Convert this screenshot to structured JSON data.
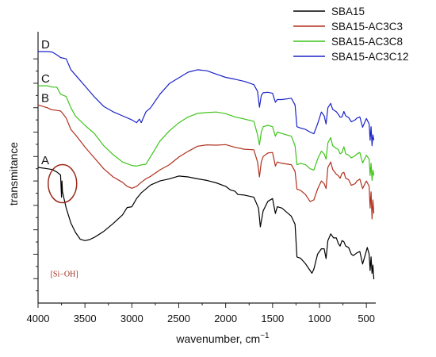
{
  "chart_data": {
    "type": "line",
    "xlabel": "wavenumber, cm",
    "xlabel_superscript": "−1",
    "ylabel": "transmitance",
    "xlim": [
      4000,
      400
    ],
    "x_reversed": true,
    "x_ticks": [
      {
        "v": 4000,
        "label": "4000"
      },
      {
        "v": 3500,
        "label": "3500"
      },
      {
        "v": 3000,
        "label": "3000"
      },
      {
        "v": 2500,
        "label": "2500"
      },
      {
        "v": 2000,
        "label": "2000"
      },
      {
        "v": 1500,
        "label": "1500"
      },
      {
        "v": 1000,
        "label": "1000"
      },
      {
        "v": 500,
        "label": "500"
      }
    ],
    "ylim": [
      0,
      100
    ],
    "y_tick_labels_shown": false,
    "y_tick_values": [
      9,
      18,
      27,
      36,
      45,
      54,
      63,
      72,
      81,
      90
    ],
    "grid": false,
    "legend_position": "top-right",
    "series": [
      {
        "name": "SBA15",
        "curve_label": "A",
        "color": "#000000",
        "points": [
          [
            4000,
            50
          ],
          [
            3900,
            49.5
          ],
          [
            3850,
            49.2
          ],
          [
            3800,
            48.3
          ],
          [
            3760,
            47.2
          ],
          [
            3750,
            39
          ],
          [
            3745,
            45
          ],
          [
            3740,
            41
          ],
          [
            3700,
            35
          ],
          [
            3650,
            29.5
          ],
          [
            3600,
            26
          ],
          [
            3550,
            23.5
          ],
          [
            3500,
            23
          ],
          [
            3450,
            23.4
          ],
          [
            3400,
            24.2
          ],
          [
            3300,
            26.4
          ],
          [
            3200,
            29.3
          ],
          [
            3100,
            32.5
          ],
          [
            3050,
            35.2
          ],
          [
            3000,
            35.5
          ],
          [
            2950,
            38.5
          ],
          [
            2900,
            40.6
          ],
          [
            2800,
            43.5
          ],
          [
            2700,
            45
          ],
          [
            2600,
            45.8
          ],
          [
            2500,
            46.8
          ],
          [
            2400,
            46.5
          ],
          [
            2300,
            45.8
          ],
          [
            2200,
            45.2
          ],
          [
            2100,
            44.3
          ],
          [
            2000,
            43
          ],
          [
            1950,
            41.7
          ],
          [
            1900,
            41.2
          ],
          [
            1870,
            40
          ],
          [
            1800,
            39.8
          ],
          [
            1700,
            39
          ],
          [
            1650,
            35
          ],
          [
            1630,
            28.1
          ],
          [
            1600,
            34
          ],
          [
            1550,
            37.5
          ],
          [
            1500,
            38.5
          ],
          [
            1470,
            33
          ],
          [
            1450,
            35.5
          ],
          [
            1400,
            35
          ],
          [
            1350,
            33.5
          ],
          [
            1300,
            32
          ],
          [
            1260,
            29
          ],
          [
            1240,
            17
          ],
          [
            1200,
            16.5
          ],
          [
            1150,
            14.5
          ],
          [
            1100,
            12
          ],
          [
            1080,
            11
          ],
          [
            1060,
            12.5
          ],
          [
            1020,
            18
          ],
          [
            980,
            20
          ],
          [
            950,
            20
          ],
          [
            930,
            16.4
          ],
          [
            910,
            23
          ],
          [
            880,
            25.5
          ],
          [
            850,
            24
          ],
          [
            820,
            24
          ],
          [
            800,
            22
          ],
          [
            780,
            21
          ],
          [
            760,
            23
          ],
          [
            740,
            22.6
          ],
          [
            720,
            21
          ],
          [
            690,
            20.5
          ],
          [
            660,
            18
          ],
          [
            640,
            17.5
          ],
          [
            600,
            18.5
          ],
          [
            570,
            19
          ],
          [
            540,
            14.4
          ],
          [
            510,
            18
          ],
          [
            490,
            20.5
          ],
          [
            470,
            18
          ],
          [
            460,
            12
          ],
          [
            450,
            17
          ],
          [
            440,
            10.9
          ],
          [
            430,
            14
          ],
          [
            420,
            8.8
          ]
        ]
      },
      {
        "name": "SBA15-AC3C3",
        "curve_label": "B",
        "color": "#b0301e",
        "points": [
          [
            4000,
            73
          ],
          [
            3950,
            72.5
          ],
          [
            3900,
            72
          ],
          [
            3860,
            71.3
          ],
          [
            3800,
            71
          ],
          [
            3760,
            70.8
          ],
          [
            3740,
            70
          ],
          [
            3700,
            68.2
          ],
          [
            3650,
            64
          ],
          [
            3600,
            62
          ],
          [
            3500,
            57.5
          ],
          [
            3400,
            53.5
          ],
          [
            3300,
            49.5
          ],
          [
            3200,
            46.5
          ],
          [
            3100,
            44.5
          ],
          [
            3050,
            43
          ],
          [
            3000,
            42.3
          ],
          [
            2950,
            43
          ],
          [
            2900,
            44.5
          ],
          [
            2850,
            45.8
          ],
          [
            2800,
            46.7
          ],
          [
            2700,
            49.1
          ],
          [
            2600,
            51
          ],
          [
            2500,
            53.8
          ],
          [
            2400,
            55.9
          ],
          [
            2300,
            57.8
          ],
          [
            2200,
            58.3
          ],
          [
            2100,
            58.2
          ],
          [
            2000,
            58.4
          ],
          [
            1900,
            57.4
          ],
          [
            1800,
            56.7
          ],
          [
            1700,
            56.5
          ],
          [
            1660,
            52
          ],
          [
            1640,
            46.5
          ],
          [
            1620,
            52
          ],
          [
            1600,
            54
          ],
          [
            1550,
            55.3
          ],
          [
            1500,
            55.5
          ],
          [
            1470,
            50.5
          ],
          [
            1450,
            52
          ],
          [
            1400,
            51.5
          ],
          [
            1300,
            51
          ],
          [
            1260,
            48.5
          ],
          [
            1240,
            42
          ],
          [
            1200,
            41.5
          ],
          [
            1150,
            40
          ],
          [
            1100,
            37.4
          ],
          [
            1060,
            38
          ],
          [
            1020,
            42
          ],
          [
            980,
            45
          ],
          [
            950,
            44
          ],
          [
            930,
            42.2
          ],
          [
            910,
            50
          ],
          [
            880,
            52
          ],
          [
            860,
            49.3
          ],
          [
            820,
            47.5
          ],
          [
            800,
            47
          ],
          [
            780,
            46
          ],
          [
            760,
            47.8
          ],
          [
            740,
            48.2
          ],
          [
            720,
            46
          ],
          [
            690,
            45.5
          ],
          [
            660,
            43.4
          ],
          [
            620,
            44
          ],
          [
            600,
            45
          ],
          [
            570,
            45.7
          ],
          [
            540,
            42.2
          ],
          [
            500,
            45
          ],
          [
            470,
            43
          ],
          [
            460,
            35
          ],
          [
            450,
            41
          ],
          [
            440,
            31
          ],
          [
            430,
            38
          ],
          [
            420,
            33
          ]
        ]
      },
      {
        "name": "SBA15-AC3C8",
        "curve_label": "C",
        "color": "#3ec41b",
        "points": [
          [
            4000,
            80.1
          ],
          [
            3900,
            80.1
          ],
          [
            3850,
            79.6
          ],
          [
            3800,
            79.6
          ],
          [
            3760,
            77
          ],
          [
            3700,
            76.1
          ],
          [
            3650,
            72
          ],
          [
            3600,
            68.9
          ],
          [
            3500,
            65.5
          ],
          [
            3400,
            62.5
          ],
          [
            3300,
            58
          ],
          [
            3200,
            54.7
          ],
          [
            3100,
            52
          ],
          [
            3000,
            50.7
          ],
          [
            2950,
            50.5
          ],
          [
            2900,
            50.9
          ],
          [
            2850,
            51.2
          ],
          [
            2800,
            54
          ],
          [
            2700,
            59.7
          ],
          [
            2600,
            63.5
          ],
          [
            2500,
            66.4
          ],
          [
            2400,
            68.6
          ],
          [
            2300,
            69.9
          ],
          [
            2200,
            70.2
          ],
          [
            2100,
            70.4
          ],
          [
            2000,
            69.8
          ],
          [
            1900,
            68.6
          ],
          [
            1800,
            67.8
          ],
          [
            1700,
            67
          ],
          [
            1660,
            62
          ],
          [
            1640,
            58.3
          ],
          [
            1620,
            63
          ],
          [
            1600,
            65
          ],
          [
            1550,
            65.5
          ],
          [
            1500,
            65
          ],
          [
            1470,
            61.5
          ],
          [
            1450,
            63
          ],
          [
            1400,
            62.5
          ],
          [
            1300,
            61.5
          ],
          [
            1260,
            58
          ],
          [
            1240,
            51
          ],
          [
            1200,
            51.5
          ],
          [
            1150,
            51
          ],
          [
            1100,
            49.5
          ],
          [
            1060,
            49
          ],
          [
            1020,
            53
          ],
          [
            980,
            56
          ],
          [
            950,
            55
          ],
          [
            930,
            53
          ],
          [
            910,
            59
          ],
          [
            880,
            61
          ],
          [
            860,
            58
          ],
          [
            820,
            57
          ],
          [
            800,
            56.6
          ],
          [
            780,
            55
          ],
          [
            760,
            55.5
          ],
          [
            740,
            57.6
          ],
          [
            720,
            55
          ],
          [
            690,
            54.5
          ],
          [
            660,
            53.5
          ],
          [
            620,
            54.3
          ],
          [
            600,
            55
          ],
          [
            570,
            55.5
          ],
          [
            540,
            51.6
          ],
          [
            500,
            54.5
          ],
          [
            470,
            53
          ],
          [
            460,
            47
          ],
          [
            450,
            51.5
          ],
          [
            440,
            45.2
          ],
          [
            430,
            49
          ],
          [
            420,
            47
          ]
        ]
      },
      {
        "name": "SBA15-AC3C12",
        "curve_label": "D",
        "color": "#1a23c8",
        "points": [
          [
            4000,
            92.7
          ],
          [
            3900,
            92.7
          ],
          [
            3850,
            92.5
          ],
          [
            3800,
            91.5
          ],
          [
            3760,
            90.5
          ],
          [
            3700,
            90
          ],
          [
            3650,
            86
          ],
          [
            3600,
            84
          ],
          [
            3500,
            80
          ],
          [
            3400,
            76
          ],
          [
            3300,
            72.5
          ],
          [
            3200,
            70.5
          ],
          [
            3100,
            69
          ],
          [
            3000,
            67.5
          ],
          [
            2950,
            66.5
          ],
          [
            2920,
            67.8
          ],
          [
            2900,
            66.5
          ],
          [
            2850,
            70.5
          ],
          [
            2800,
            72
          ],
          [
            2700,
            77
          ],
          [
            2600,
            80.9
          ],
          [
            2500,
            83
          ],
          [
            2400,
            85.1
          ],
          [
            2300,
            86
          ],
          [
            2200,
            85.6
          ],
          [
            2100,
            84.4
          ],
          [
            2000,
            83.2
          ],
          [
            1900,
            82.5
          ],
          [
            1800,
            81.7
          ],
          [
            1700,
            80.5
          ],
          [
            1660,
            78
          ],
          [
            1640,
            72.2
          ],
          [
            1620,
            76.5
          ],
          [
            1600,
            77.5
          ],
          [
            1550,
            77.7
          ],
          [
            1500,
            77.3
          ],
          [
            1470,
            74
          ],
          [
            1450,
            75
          ],
          [
            1400,
            75
          ],
          [
            1300,
            75.5
          ],
          [
            1260,
            73
          ],
          [
            1240,
            65
          ],
          [
            1200,
            64.5
          ],
          [
            1150,
            64
          ],
          [
            1100,
            63
          ],
          [
            1060,
            62.4
          ],
          [
            1020,
            66
          ],
          [
            980,
            70.4
          ],
          [
            950,
            69
          ],
          [
            930,
            66
          ],
          [
            910,
            72
          ],
          [
            880,
            73.6
          ],
          [
            860,
            71.4
          ],
          [
            820,
            70.5
          ],
          [
            800,
            69.6
          ],
          [
            780,
            68.5
          ],
          [
            760,
            68.6
          ],
          [
            740,
            70.6
          ],
          [
            720,
            69
          ],
          [
            690,
            68.4
          ],
          [
            660,
            66.8
          ],
          [
            620,
            67.5
          ],
          [
            600,
            68.2
          ],
          [
            570,
            68.6
          ],
          [
            540,
            64.8
          ],
          [
            500,
            68
          ],
          [
            470,
            66
          ],
          [
            460,
            60
          ],
          [
            450,
            65
          ],
          [
            440,
            58
          ],
          [
            430,
            62
          ],
          [
            420,
            60
          ]
        ]
      }
    ],
    "annotations": [
      {
        "text": "[Si−OH]",
        "x": 3720,
        "y": 18,
        "color": "#9b2a1a",
        "circle_center": [
          3740,
          44
        ],
        "circle_color": "#9b2a1a"
      }
    ]
  }
}
